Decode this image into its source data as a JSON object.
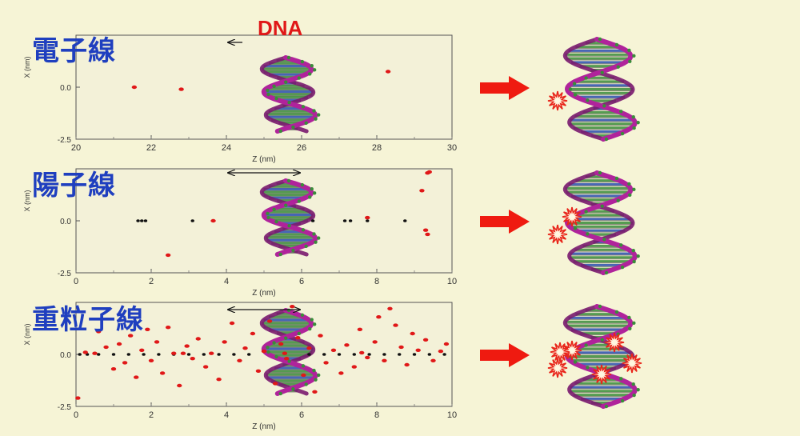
{
  "dna_label": "DNA",
  "colors": {
    "background": "#f6f4d6",
    "label_blue": "#1f3fbf",
    "red_marker": "#e01818",
    "dark_marker": "#111111",
    "strand_magenta": "#b0239b",
    "base_green": "#3a8c3a",
    "arrow_red": "#ef1a10"
  },
  "chart_data": [
    {
      "type": "scatter",
      "row_label": "電子線",
      "xlabel": "Z   (nm)",
      "ylabel": "X (nm)",
      "xlim": [
        20,
        30
      ],
      "ylim": [
        -2.5,
        2.5
      ],
      "xticks": [
        "20",
        "22",
        "24",
        "26",
        "28",
        "30"
      ],
      "yticks": [
        "-2.5",
        "0.0"
      ],
      "dna_span": [
        24,
        26
      ],
      "arrow": "single",
      "series": [
        {
          "color": "red",
          "points": [
            [
              21.55,
              0.0
            ],
            [
              22.8,
              -0.1
            ],
            [
              28.3,
              0.75
            ]
          ]
        }
      ]
    },
    {
      "type": "scatter",
      "row_label": "陽子線",
      "xlabel": "Z   (nm)",
      "ylabel": "X (nm)",
      "xlim": [
        0,
        10
      ],
      "ylim": [
        -2.5,
        2.5
      ],
      "xticks": [
        "0",
        "2",
        "4",
        "6",
        "8",
        "10"
      ],
      "yticks": [
        "-2.5",
        "0.0"
      ],
      "dna_span": [
        4,
        6
      ],
      "arrow": "double",
      "series": [
        {
          "color": "dark",
          "points": [
            [
              1.65,
              0
            ],
            [
              1.75,
              0
            ],
            [
              1.85,
              0
            ],
            [
              3.1,
              0
            ],
            [
              6.3,
              0
            ],
            [
              7.15,
              0
            ],
            [
              7.3,
              0
            ],
            [
              7.75,
              0
            ],
            [
              8.75,
              0
            ]
          ]
        },
        {
          "color": "red",
          "points": [
            [
              2.45,
              -1.65
            ],
            [
              3.65,
              0
            ],
            [
              7.75,
              0.15
            ],
            [
              9.3,
              -0.45
            ],
            [
              9.35,
              -0.65
            ],
            [
              9.2,
              1.45
            ],
            [
              9.35,
              2.3
            ],
            [
              9.4,
              2.35
            ]
          ]
        }
      ]
    },
    {
      "type": "scatter",
      "row_label": "重粒子線",
      "xlabel": "Z   (nm)",
      "ylabel": "X (nm)",
      "xlim": [
        0,
        10
      ],
      "ylim": [
        -2.5,
        2.5
      ],
      "xticks": [
        "0",
        "2",
        "4",
        "6",
        "8",
        "10"
      ],
      "yticks": [
        "-2.5",
        "0.0"
      ],
      "dna_span": [
        4,
        6
      ],
      "arrow": "double",
      "series": [
        {
          "color": "dark",
          "points": [
            [
              0.1,
              0
            ],
            [
              0.3,
              0
            ],
            [
              0.6,
              0
            ],
            [
              1.0,
              0
            ],
            [
              1.4,
              0
            ],
            [
              1.8,
              0
            ],
            [
              2.2,
              0
            ],
            [
              2.6,
              0
            ],
            [
              3.0,
              0
            ],
            [
              3.4,
              0
            ],
            [
              3.8,
              0
            ],
            [
              4.2,
              0
            ],
            [
              4.6,
              0
            ],
            [
              6.2,
              0
            ],
            [
              6.6,
              0
            ],
            [
              7.0,
              0
            ],
            [
              7.4,
              0
            ],
            [
              7.8,
              0
            ],
            [
              8.2,
              0
            ],
            [
              8.6,
              0
            ],
            [
              9.0,
              0
            ],
            [
              9.4,
              0
            ],
            [
              9.8,
              0
            ]
          ]
        },
        {
          "color": "red",
          "points": [
            [
              0.05,
              -2.1
            ],
            [
              0.25,
              0.1
            ],
            [
              0.6,
              1.1
            ],
            [
              0.8,
              0.35
            ],
            [
              1.0,
              -0.7
            ],
            [
              1.15,
              0.5
            ],
            [
              1.3,
              -0.4
            ],
            [
              1.45,
              0.9
            ],
            [
              1.6,
              -1.1
            ],
            [
              1.75,
              0.2
            ],
            [
              1.9,
              1.2
            ],
            [
              2.0,
              -0.3
            ],
            [
              2.15,
              0.6
            ],
            [
              2.3,
              -0.9
            ],
            [
              2.45,
              1.3
            ],
            [
              2.6,
              0.05
            ],
            [
              2.75,
              -1.5
            ],
            [
              2.95,
              0.4
            ],
            [
              3.1,
              -0.2
            ],
            [
              3.25,
              0.75
            ],
            [
              3.45,
              -0.6
            ],
            [
              3.6,
              0.05
            ],
            [
              3.8,
              -1.2
            ],
            [
              3.95,
              0.6
            ],
            [
              4.15,
              1.5
            ],
            [
              4.35,
              -0.3
            ],
            [
              4.5,
              0.3
            ],
            [
              4.7,
              1.0
            ],
            [
              4.85,
              -0.8
            ],
            [
              5.0,
              0.15
            ],
            [
              5.15,
              1.6
            ],
            [
              5.3,
              -1.4
            ],
            [
              5.45,
              0.5
            ],
            [
              5.6,
              -0.2
            ],
            [
              5.75,
              2.3
            ],
            [
              5.9,
              0.8
            ],
            [
              6.05,
              -1.0
            ],
            [
              6.2,
              0.3
            ],
            [
              6.35,
              -1.8
            ],
            [
              6.5,
              0.9
            ],
            [
              6.65,
              -0.4
            ],
            [
              6.85,
              0.2
            ],
            [
              7.05,
              -0.9
            ],
            [
              7.2,
              0.45
            ],
            [
              7.4,
              -0.6
            ],
            [
              7.55,
              1.2
            ],
            [
              7.75,
              -0.15
            ],
            [
              7.95,
              0.6
            ],
            [
              8.05,
              1.8
            ],
            [
              8.2,
              -0.3
            ],
            [
              8.35,
              2.2
            ],
            [
              8.5,
              1.4
            ],
            [
              8.65,
              0.35
            ],
            [
              8.8,
              -0.5
            ],
            [
              8.95,
              1.0
            ],
            [
              9.1,
              0.2
            ],
            [
              9.3,
              0.7
            ],
            [
              9.5,
              -0.3
            ],
            [
              9.7,
              0.15
            ],
            [
              9.85,
              0.5
            ],
            [
              0.5,
              0.05
            ],
            [
              2.85,
              0.05
            ],
            [
              5.55,
              0.05
            ],
            [
              7.6,
              0.08
            ]
          ]
        }
      ]
    }
  ],
  "damage": [
    {
      "label": "電子線",
      "sites": 1
    },
    {
      "label": "陽子線",
      "sites": 2
    },
    {
      "label": "重粒子線",
      "sites": 6
    }
  ]
}
